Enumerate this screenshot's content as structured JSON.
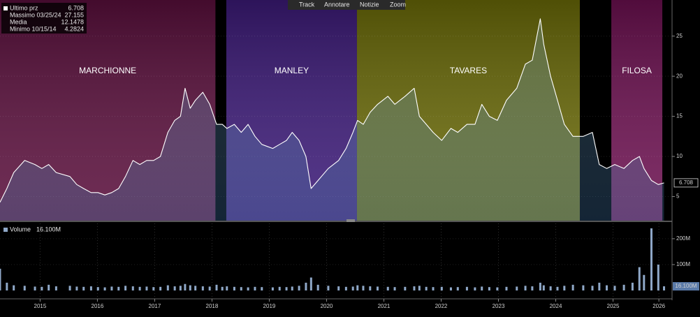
{
  "toolbar": [
    "Track",
    "Annotare",
    "Notizie",
    "Zoom"
  ],
  "chart_data": [
    {
      "type": "line",
      "summary": [
        {
          "label": "Ultimo prz",
          "value": 6.708
        },
        {
          "label": "Massimo 03/25/24",
          "value": 27.155
        },
        {
          "label": "Media",
          "value": 12.1478
        },
        {
          "label": "Minimo 10/15/14",
          "value": 4.2824
        }
      ],
      "eras": [
        {
          "name": "MARCHIONNE",
          "start": 2014.8,
          "end": 2018.56,
          "color": "#5a0f3c"
        },
        {
          "name": "MANLEY",
          "start": 2018.75,
          "end": 2021.03,
          "color": "#3c1a78"
        },
        {
          "name": "TAVARES",
          "start": 2021.03,
          "end": 2024.92,
          "color": "#6a6a08"
        },
        {
          "name": "FILOSA",
          "start": 2025.47,
          "end": 2026.36,
          "color": "#6c1050"
        }
      ],
      "x": [
        2014.8,
        2014.92,
        2015.04,
        2015.23,
        2015.41,
        2015.53,
        2015.65,
        2015.78,
        2016.02,
        2016.14,
        2016.26,
        2016.39,
        2016.51,
        2016.63,
        2016.75,
        2016.87,
        2016.99,
        2017.12,
        2017.24,
        2017.36,
        2017.48,
        2017.6,
        2017.73,
        2017.85,
        2017.95,
        2018.03,
        2018.12,
        2018.21,
        2018.34,
        2018.46,
        2018.58,
        2018.68,
        2018.76,
        2018.89,
        2019.01,
        2019.13,
        2019.25,
        2019.37,
        2019.56,
        2019.68,
        2019.8,
        2019.9,
        2020.02,
        2020.14,
        2020.23,
        2020.35,
        2020.53,
        2020.71,
        2020.84,
        2020.96,
        2021.04,
        2021.14,
        2021.26,
        2021.39,
        2021.57,
        2021.69,
        2021.87,
        2022.03,
        2022.12,
        2022.24,
        2022.36,
        2022.51,
        2022.67,
        2022.79,
        2022.95,
        2023.09,
        2023.21,
        2023.34,
        2023.48,
        2023.64,
        2023.82,
        2023.97,
        2024.09,
        2024.23,
        2024.29,
        2024.41,
        2024.53,
        2024.65,
        2024.8,
        2024.98,
        2025.14,
        2025.26,
        2025.39,
        2025.53,
        2025.69,
        2025.84,
        2025.96,
        2026.04,
        2026.17,
        2026.29,
        2026.39
      ],
      "series": [
        {
          "name": "Ultimo prz",
          "color": "#ffffff",
          "values": [
            4.2824,
            6,
            8,
            9.5,
            9,
            8.5,
            9,
            8,
            7.5,
            6.5,
            6,
            5.5,
            5.5,
            5.2,
            5.5,
            6,
            7.5,
            9.5,
            9,
            9.5,
            9.5,
            10,
            13,
            14.5,
            15,
            18.5,
            16,
            17,
            18,
            16.5,
            14,
            14,
            13.5,
            14,
            13,
            14,
            12.5,
            11.5,
            11,
            11.5,
            12,
            13,
            12,
            10,
            6,
            7,
            8.5,
            9.5,
            11,
            13,
            14.5,
            14,
            15.5,
            16.5,
            17.5,
            16.5,
            17.5,
            18.5,
            15,
            14,
            13,
            12,
            13.5,
            13,
            14,
            14,
            16.5,
            15,
            14.5,
            17,
            18.5,
            21.5,
            22,
            27.155,
            24,
            20,
            17,
            14,
            12.5,
            12.5,
            13,
            9,
            8.5,
            9,
            8.5,
            9.5,
            10,
            8.5,
            7,
            6.5,
            6.708
          ]
        }
      ],
      "xlim": [
        2014.8,
        2026.53
      ],
      "xticks": [
        {
          "value": 2015.5,
          "label": "2015"
        },
        {
          "value": 2016.5,
          "label": "2016"
        },
        {
          "value": 2017.5,
          "label": "2017"
        },
        {
          "value": 2018.5,
          "label": "2018"
        },
        {
          "value": 2019.5,
          "label": "2019"
        },
        {
          "value": 2020.5,
          "label": "2020"
        },
        {
          "value": 2021.5,
          "label": "2021"
        },
        {
          "value": 2022.5,
          "label": "2022"
        },
        {
          "value": 2023.5,
          "label": "2023"
        },
        {
          "value": 2024.5,
          "label": "2024"
        },
        {
          "value": 2025.5,
          "label": "2025"
        },
        {
          "value": 2026.3,
          "label": "2026"
        }
      ],
      "ylim": [
        2,
        29.5
      ],
      "yticks": [
        5,
        10,
        15,
        20,
        25
      ],
      "grid": true
    },
    {
      "type": "bar",
      "series": [
        {
          "name": "Volume",
          "color": "#8fa8c8",
          "values": [
            84,
            30,
            20,
            18,
            15,
            14,
            22,
            16,
            18,
            15,
            14,
            16,
            13,
            12,
            15,
            14,
            18,
            16,
            14,
            15,
            13,
            14,
            20,
            16,
            18,
            25,
            20,
            18,
            16,
            15,
            22,
            14,
            16,
            14,
            13,
            12,
            14,
            13,
            12,
            14,
            13,
            15,
            18,
            30,
            50,
            22,
            18,
            16,
            14,
            15,
            20,
            18,
            16,
            15,
            14,
            13,
            14,
            16,
            18,
            14,
            13,
            14,
            12,
            13,
            14,
            12,
            15,
            13,
            12,
            14,
            15,
            18,
            16,
            30,
            20,
            16,
            14,
            18,
            22,
            20,
            18,
            30,
            20,
            18,
            22,
            30,
            90,
            60,
            240,
            100,
            16.1
          ]
        }
      ],
      "current": {
        "value": 16.1,
        "label": "16.100M"
      },
      "x": [
        2014.8,
        2014.92,
        2015.04,
        2015.23,
        2015.41,
        2015.53,
        2015.65,
        2015.78,
        2016.02,
        2016.14,
        2016.26,
        2016.39,
        2016.51,
        2016.63,
        2016.75,
        2016.87,
        2016.99,
        2017.12,
        2017.24,
        2017.36,
        2017.48,
        2017.6,
        2017.73,
        2017.85,
        2017.95,
        2018.03,
        2018.12,
        2018.21,
        2018.34,
        2018.46,
        2018.58,
        2018.68,
        2018.76,
        2018.89,
        2019.01,
        2019.13,
        2019.25,
        2019.37,
        2019.56,
        2019.68,
        2019.8,
        2019.9,
        2020.02,
        2020.14,
        2020.23,
        2020.35,
        2020.53,
        2020.71,
        2020.84,
        2020.96,
        2021.04,
        2021.14,
        2021.26,
        2021.39,
        2021.57,
        2021.69,
        2021.87,
        2022.03,
        2022.12,
        2022.24,
        2022.36,
        2022.51,
        2022.67,
        2022.79,
        2022.95,
        2023.09,
        2023.21,
        2023.34,
        2023.48,
        2023.64,
        2023.82,
        2023.97,
        2024.09,
        2024.23,
        2024.29,
        2024.41,
        2024.53,
        2024.65,
        2024.8,
        2024.98,
        2025.14,
        2025.26,
        2025.39,
        2025.53,
        2025.69,
        2025.84,
        2025.96,
        2026.04,
        2026.17,
        2026.29,
        2026.39
      ],
      "xlim": [
        2014.8,
        2026.53
      ],
      "ylim": [
        0,
        259
      ],
      "yticks": [
        {
          "value": 100,
          "label": "100M"
        },
        {
          "value": 200,
          "label": "200M"
        }
      ]
    }
  ]
}
